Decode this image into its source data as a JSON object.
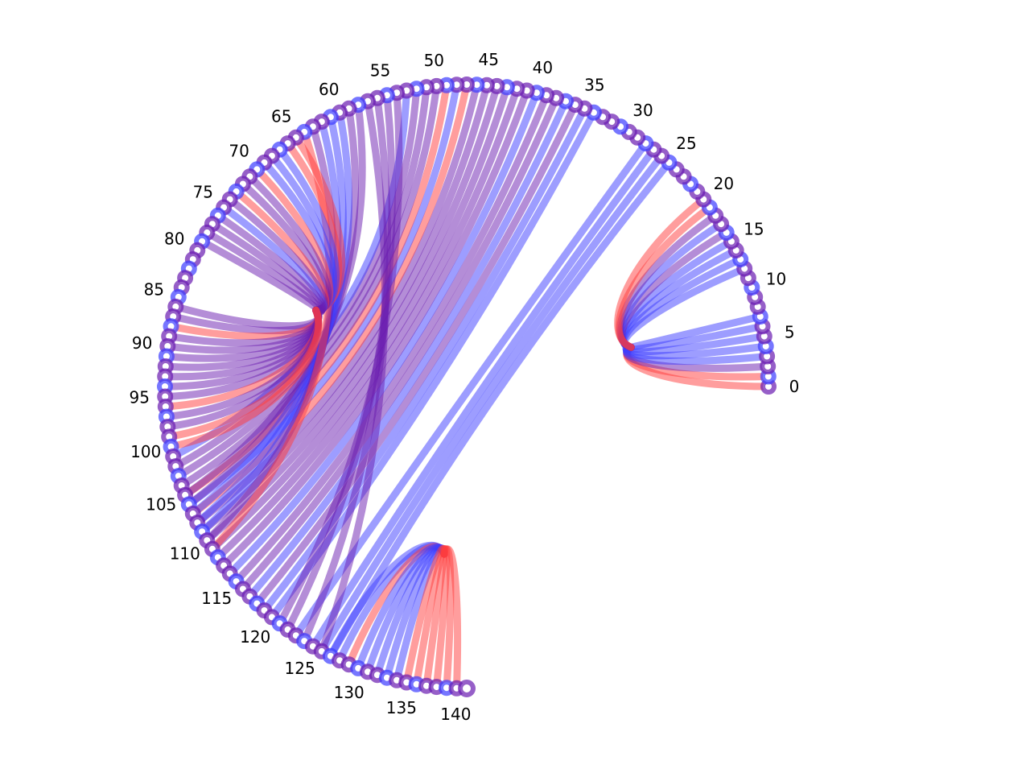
{
  "chart_data": {
    "type": "chord",
    "node_count": 142,
    "arc_extent_deg": 270,
    "tick_labels": [
      "0",
      "5",
      "10",
      "15",
      "20",
      "25",
      "30",
      "35",
      "40",
      "45",
      "50",
      "55",
      "60",
      "65",
      "70",
      "75",
      "80",
      "85",
      "90",
      "95",
      "100",
      "105",
      "110",
      "115",
      "120",
      "125",
      "130",
      "135",
      "140"
    ],
    "colors": {
      "blue": "#3c3cff",
      "red": "#ff3c3c",
      "purple": "#6a1bb0",
      "node_fill": "#ffffff"
    },
    "hubs": [
      {
        "center_node": 7,
        "links": [
          [
            0,
            "red"
          ],
          [
            1,
            "red"
          ],
          [
            2,
            "purple"
          ],
          [
            3,
            "blue"
          ],
          [
            4,
            "blue"
          ],
          [
            5,
            "blue"
          ],
          [
            6,
            "blue"
          ],
          [
            7,
            "blue"
          ],
          [
            12,
            "blue"
          ],
          [
            13,
            "blue"
          ],
          [
            14,
            "blue"
          ],
          [
            15,
            "blue"
          ],
          [
            16,
            "purple"
          ],
          [
            17,
            "blue"
          ],
          [
            18,
            "purple"
          ],
          [
            19,
            "red"
          ],
          [
            20,
            "red"
          ]
        ]
      },
      {
        "center_node": 80,
        "links": [
          [
            65,
            "red"
          ],
          [
            66,
            "red"
          ],
          [
            67,
            "blue"
          ],
          [
            68,
            "blue"
          ],
          [
            69,
            "blue"
          ],
          [
            70,
            "red"
          ],
          [
            71,
            "purple"
          ],
          [
            72,
            "purple"
          ],
          [
            73,
            "red"
          ],
          [
            74,
            "purple"
          ],
          [
            75,
            "blue"
          ],
          [
            76,
            "purple"
          ],
          [
            77,
            "purple"
          ],
          [
            78,
            "purple"
          ],
          [
            79,
            "purple"
          ],
          [
            86,
            "purple"
          ],
          [
            87,
            "purple"
          ],
          [
            88,
            "red"
          ],
          [
            89,
            "purple"
          ],
          [
            90,
            "purple"
          ],
          [
            91,
            "purple"
          ],
          [
            92,
            "purple"
          ],
          [
            93,
            "purple"
          ],
          [
            94,
            "purple"
          ],
          [
            95,
            "purple"
          ],
          [
            96,
            "red"
          ],
          [
            97,
            "purple"
          ],
          [
            98,
            "purple"
          ],
          [
            99,
            "red"
          ],
          [
            100,
            "red"
          ]
        ]
      },
      {
        "center_node": 137,
        "links": [
          [
            127,
            "blue"
          ],
          [
            128,
            "blue"
          ],
          [
            129,
            "red"
          ],
          [
            130,
            "blue"
          ],
          [
            131,
            "blue"
          ],
          [
            132,
            "blue"
          ],
          [
            133,
            "blue"
          ],
          [
            134,
            "blue"
          ],
          [
            135,
            "red"
          ],
          [
            136,
            "red"
          ],
          [
            137,
            "red"
          ],
          [
            138,
            "red"
          ],
          [
            139,
            "red"
          ],
          [
            140,
            "red"
          ]
        ]
      }
    ],
    "chords": [
      [
        28,
        123,
        "blue"
      ],
      [
        27,
        125,
        "blue"
      ],
      [
        26,
        126,
        "blue"
      ],
      [
        25,
        127,
        "blue"
      ],
      [
        34,
        120,
        "blue"
      ],
      [
        35,
        119,
        "blue"
      ],
      [
        36,
        118,
        "purple"
      ],
      [
        37,
        117,
        "blue"
      ],
      [
        38,
        116,
        "purple"
      ],
      [
        39,
        115,
        "purple"
      ],
      [
        40,
        114,
        "blue"
      ],
      [
        41,
        113,
        "purple"
      ],
      [
        42,
        112,
        "purple"
      ],
      [
        43,
        111,
        "purple"
      ],
      [
        44,
        110,
        "purple"
      ],
      [
        45,
        109,
        "purple"
      ],
      [
        46,
        108,
        "purple"
      ],
      [
        47,
        107,
        "red"
      ],
      [
        48,
        106,
        "blue"
      ],
      [
        49,
        105,
        "red"
      ],
      [
        50,
        104,
        "purple"
      ],
      [
        51,
        103,
        "purple"
      ],
      [
        52,
        102,
        "purple"
      ],
      [
        53,
        101,
        "blue"
      ],
      [
        54,
        121,
        "purple"
      ],
      [
        55,
        122,
        "purple"
      ],
      [
        56,
        124,
        "purple"
      ],
      [
        57,
        126,
        "purple"
      ],
      [
        58,
        105,
        "purple"
      ],
      [
        59,
        106,
        "purple"
      ],
      [
        60,
        107,
        "blue"
      ],
      [
        61,
        108,
        "blue"
      ],
      [
        62,
        109,
        "blue"
      ],
      [
        63,
        110,
        "purple"
      ],
      [
        64,
        111,
        "red"
      ]
    ]
  }
}
